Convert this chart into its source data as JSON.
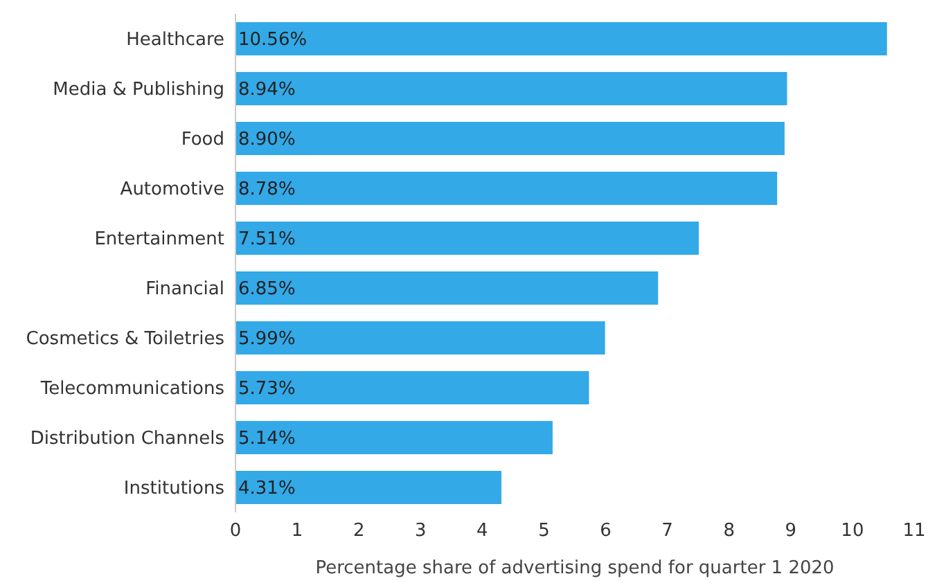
{
  "chart_data": {
    "type": "bar",
    "orientation": "horizontal",
    "xlabel": "Percentage share of advertising spend for quarter 1 2020",
    "categories": [
      "Healthcare",
      "Media & Publishing",
      "Food",
      "Automotive",
      "Entertainment",
      "Financial",
      "Cosmetics & Toiletries",
      "Telecommunications",
      "Distribution Channels",
      "Institutions"
    ],
    "values": [
      10.56,
      8.94,
      8.9,
      8.78,
      7.51,
      6.85,
      5.99,
      5.73,
      5.14,
      4.31
    ],
    "value_labels": [
      "10.56%",
      "8.94%",
      "8.90%",
      "8.78%",
      "7.51%",
      "6.85%",
      "5.99%",
      "5.73%",
      "5.14%",
      "4.31%"
    ],
    "color": "#33a9e8",
    "xlim": [
      0,
      11
    ],
    "xticks": [
      0,
      1,
      2,
      3,
      4,
      5,
      6,
      7,
      8,
      9,
      10,
      11
    ],
    "grid": false
  }
}
